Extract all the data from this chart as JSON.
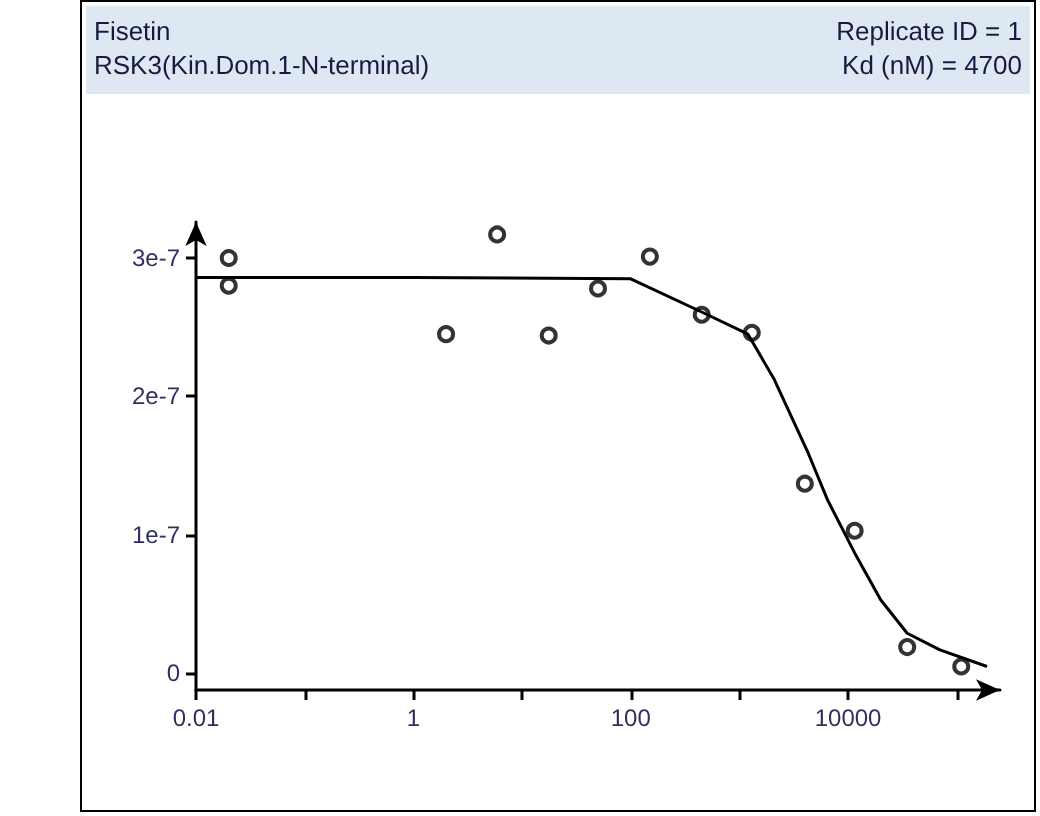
{
  "chart_data": {
    "type": "scatter",
    "title": "Fisetin",
    "subtitle": "RSK3(Kin.Dom.1-N-terminal)",
    "annotations": [
      "Replicate ID = 1",
      "Kd (nM) = 4700"
    ],
    "log": "x",
    "grid": false,
    "marker": "circle",
    "xlim": [
      0.01,
      250000
    ],
    "xticks": [
      0.01,
      {
        "value": 0.1,
        "label": null
      },
      1,
      {
        "value": 10,
        "label": null
      },
      100,
      {
        "value": 1000,
        "label": null
      },
      10000,
      {
        "value": 100000,
        "label": null
      }
    ],
    "ylim": [
      -1.2e-08,
      3.26e-07
    ],
    "yticks": [
      0,
      {
        "value": 1e-07,
        "label": "1e-7"
      },
      {
        "value": 2e-07,
        "label": "2e-7"
      },
      {
        "value": 3e-07,
        "label": "3e-7"
      }
    ],
    "series": [
      {
        "color": "#000000",
        "x": [
          0.02,
          0.02,
          2,
          5.9,
          17.6,
          50,
          150,
          450,
          1300,
          4000,
          11500,
          35000,
          110000
        ],
        "values": [
          3e-07,
          2.8e-07,
          2.45e-07,
          3.17e-07,
          2.44e-07,
          2.78e-07,
          3.01e-07,
          2.59e-07,
          2.46e-07,
          1.37e-07,
          1.03e-07,
          1.9e-08,
          5e-09
        ]
      },
      {
        "type": "line",
        "color": "#000000",
        "marker": "none",
        "line_style": "solid",
        "x": [
          0.01,
          1,
          100,
          450,
          1200,
          2100,
          4300,
          6500,
          11500,
          20000,
          35000,
          70000,
          190000
        ],
        "values": [
          2.86e-07,
          2.86e-07,
          2.85e-07,
          2.61e-07,
          2.45e-07,
          2.12e-07,
          1.59e-07,
          1.25e-07,
          8.7e-08,
          5.3e-08,
          2.9e-08,
          1.7e-08,
          5e-09
        ]
      }
    ]
  }
}
